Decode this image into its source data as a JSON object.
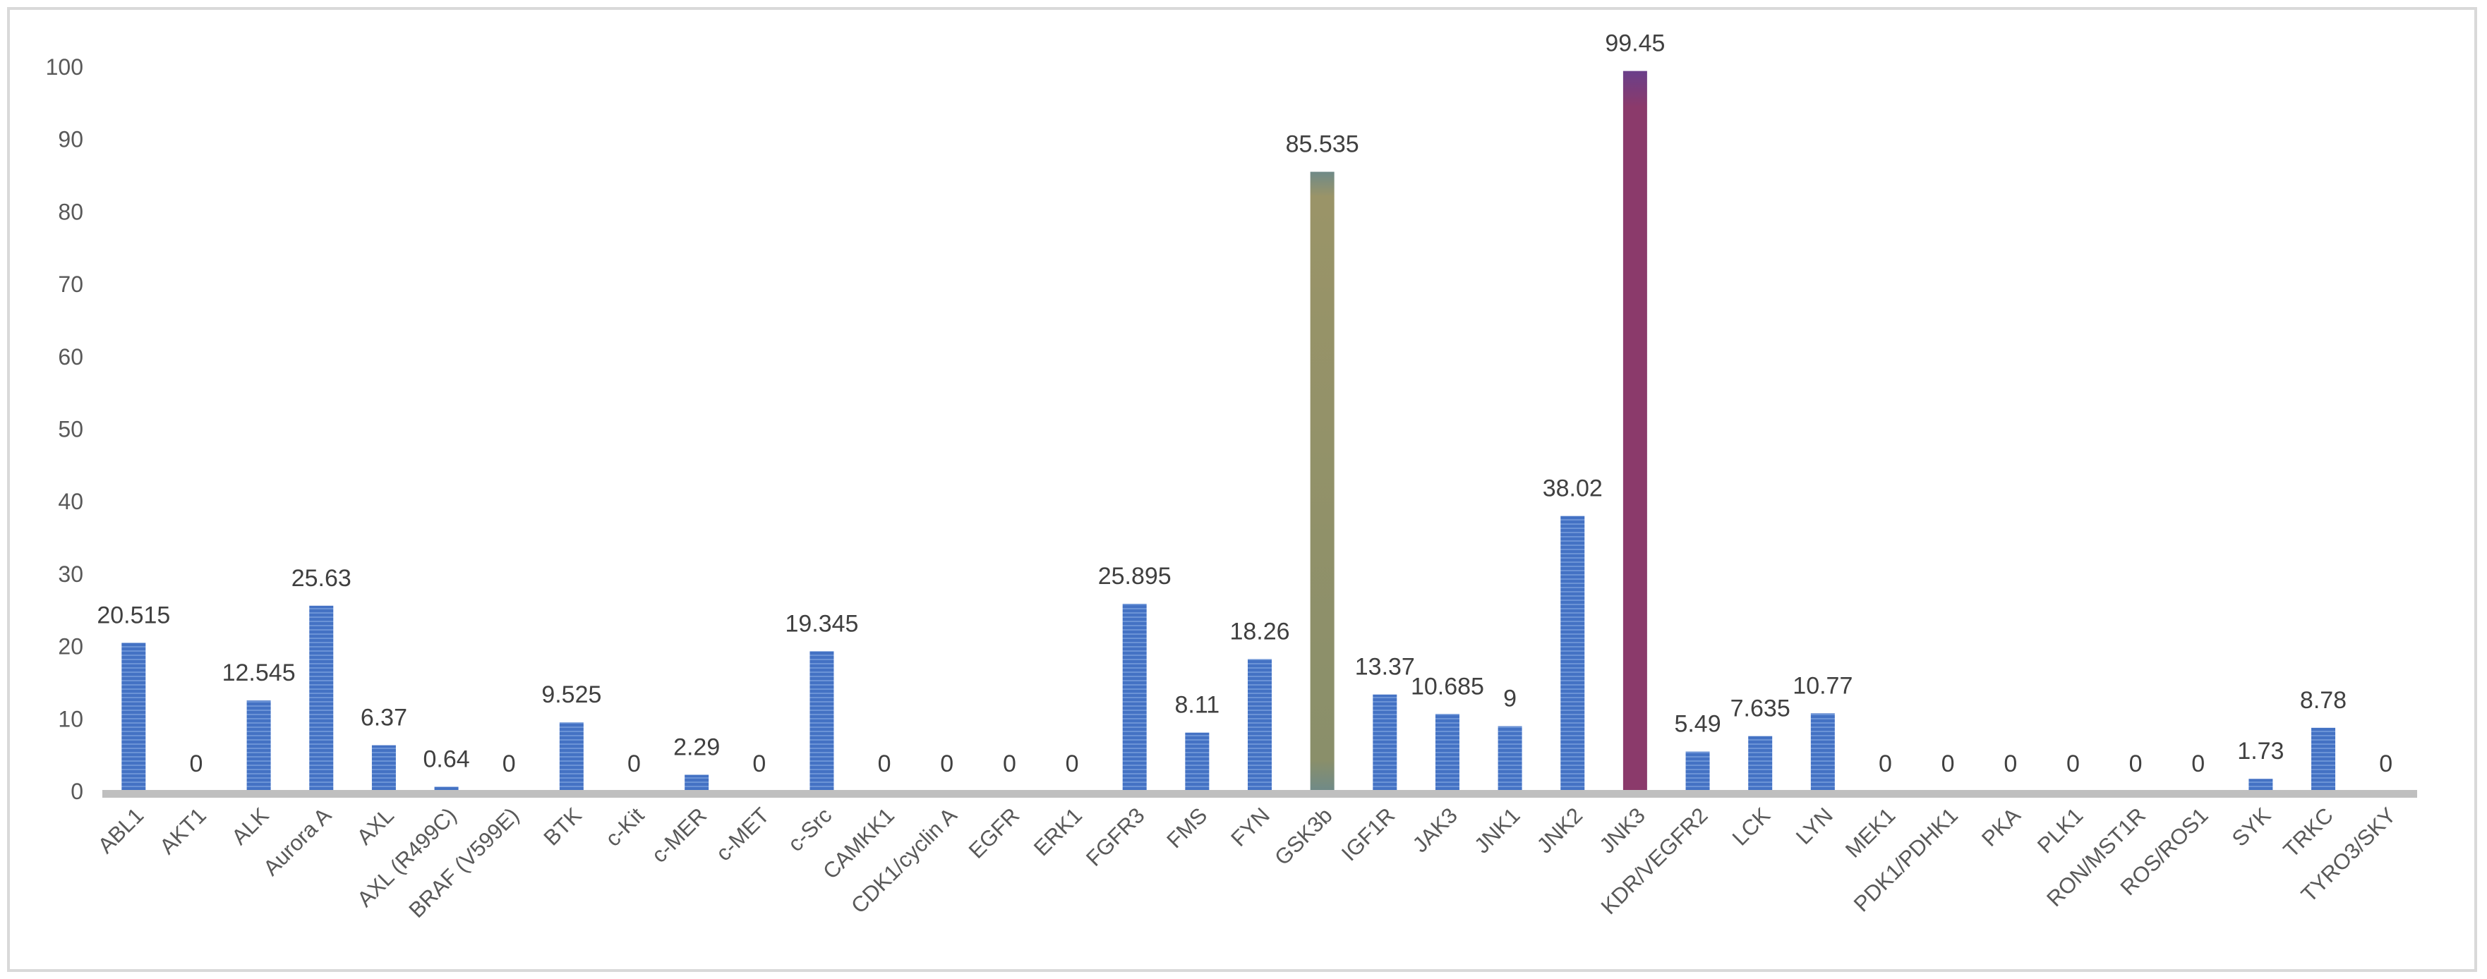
{
  "chart_data": {
    "type": "bar",
    "title": "",
    "xlabel": "",
    "ylabel": "",
    "ylim": [
      0,
      100
    ],
    "yticks": [
      0,
      10,
      20,
      30,
      40,
      50,
      60,
      70,
      80,
      90,
      100
    ],
    "grid": false,
    "legend": "none",
    "data_labels": true,
    "categories": [
      "ABL1",
      "AKT1",
      "ALK",
      "Aurora A",
      "AXL",
      "AXL (R499C)",
      "BRAF (V599E)",
      "BTK",
      "c-Kit",
      "c-MER",
      "c-MET",
      "c-Src",
      "CAMKK1",
      "CDK1/cyclin A",
      "EGFR",
      "ERK1",
      "FGFR3",
      "FMS",
      "FYN",
      "GSK3b",
      "IGF1R",
      "JAK3",
      "JNK1",
      "JNK2",
      "JNK3",
      "KDR/VEGFR2",
      "LCK",
      "LYN",
      "MEK1",
      "PDK1/PDHK1",
      "PKA",
      "PLK1",
      "RON/MST1R",
      "ROS/ROS1",
      "SYK",
      "TRKC",
      "TYRO3/SKY"
    ],
    "values": [
      20.515,
      0,
      12.545,
      25.63,
      6.37,
      0.64,
      0,
      9.525,
      0,
      2.29,
      0,
      19.345,
      0,
      0,
      0,
      0,
      25.895,
      8.11,
      18.26,
      85.535,
      13.37,
      10.685,
      9,
      38.02,
      99.45,
      5.49,
      7.635,
      10.77,
      0,
      0,
      0,
      0,
      0,
      0,
      1.73,
      8.78,
      0
    ],
    "colors": {
      "default_bar": "#4472c4",
      "GSK3b": "#8a8a6a",
      "JNK3": "#8b3a6b",
      "axis": "#bfbfbf"
    }
  }
}
